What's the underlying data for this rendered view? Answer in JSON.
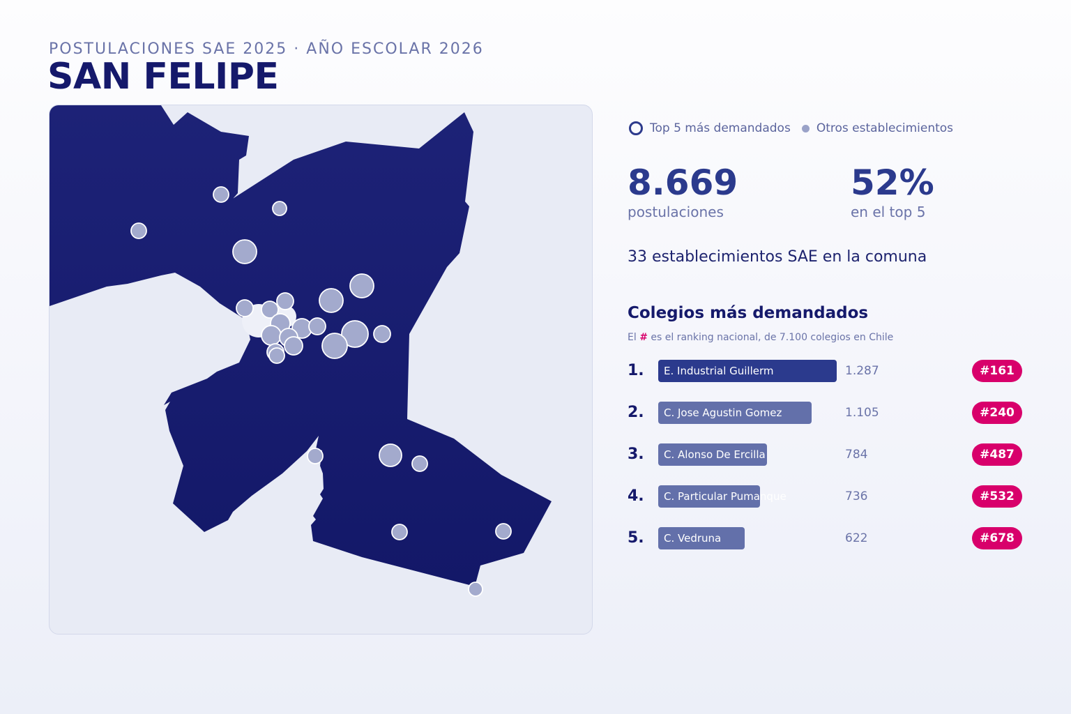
{
  "header": {
    "kicker": "POSTULACIONES SAE 2025 · AÑO ESCOLAR 2026",
    "title": "SAN FELIPE"
  },
  "legend": {
    "top5_label": "Top 5 más demandados",
    "others_label": "Otros establecimientos"
  },
  "stats": {
    "applications_value": "8.669",
    "applications_label": "postulaciones",
    "share_value": "52%",
    "share_label": "en el top 5"
  },
  "establishments_line": "33 establecimientos SAE en la comuna",
  "ranking": {
    "title": "Colegios más demandados",
    "note_prefix": "El ",
    "note_hash": "#",
    "note_suffix": " es el ranking nacional, de 7.100 colegios en Chile",
    "max_value": 1287,
    "items": [
      {
        "pos": "1.",
        "name": "E. Industrial Guillerm",
        "value": 1287,
        "value_label": "1.287",
        "national_rank": "#161"
      },
      {
        "pos": "2.",
        "name": "C. Jose Agustin Gomez",
        "value": 1105,
        "value_label": "1.105",
        "national_rank": "#240"
      },
      {
        "pos": "3.",
        "name": "C. Alonso De Ercilla",
        "value": 784,
        "value_label": "784",
        "national_rank": "#487"
      },
      {
        "pos": "4.",
        "name": "C. Particular Pumanque",
        "value": 736,
        "value_label": "736",
        "national_rank": "#532"
      },
      {
        "pos": "5.",
        "name": "C. Vedruna",
        "value": 622,
        "value_label": "622",
        "national_rank": "#678"
      }
    ]
  },
  "colors": {
    "map_fill": "#1a1f74",
    "map_background": "#e8ebf5",
    "marker_fill": "#a3aacd",
    "marker_stroke": "#ffffff",
    "bar_top": "#2b3a8d",
    "bar_other": "#6370aa",
    "badge": "#d8006b",
    "accent_text": "#15196b"
  }
}
